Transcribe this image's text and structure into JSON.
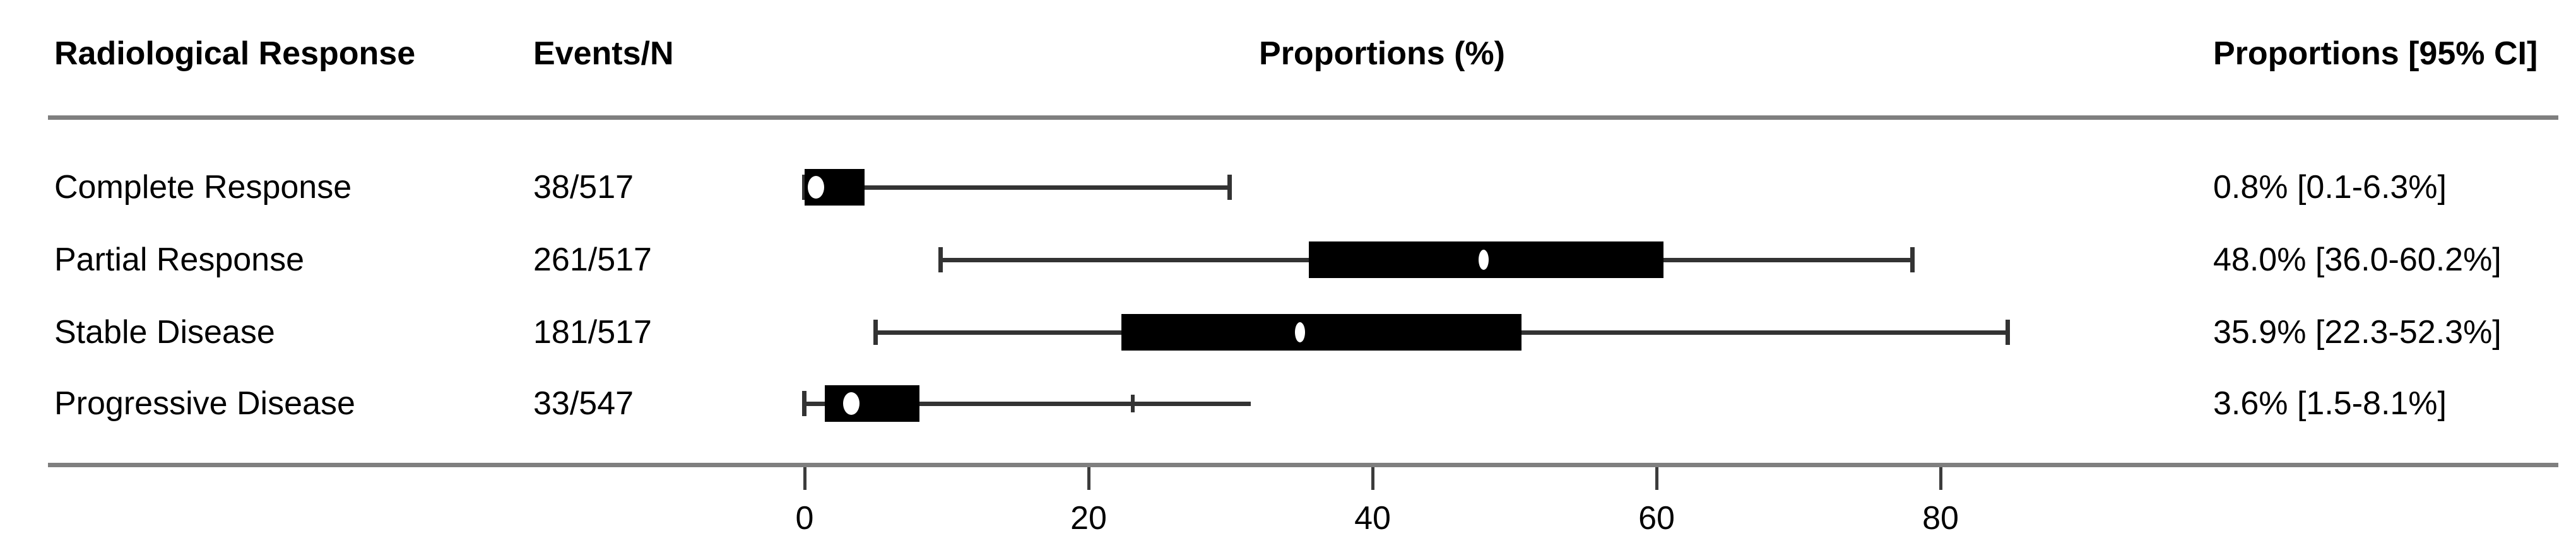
{
  "page": {
    "background": "#ffffff",
    "text_color": "#000000",
    "rule_color": "#7f7f7f",
    "box_color": "#000000",
    "marker_color": "#ffffff"
  },
  "header": {
    "col_response": "Radiological Response",
    "col_events": "Events/N",
    "col_proportions": "Proportions (%)",
    "col_ci": "Proportions [95% CI]"
  },
  "rows": [
    {
      "label": "Complete Response",
      "events_n": "38/517",
      "ci_text": "0.8% [0.1-6.3%]"
    },
    {
      "label": "Partial Response",
      "events_n": "261/517",
      "ci_text": "48.0% [36.0-60.2%]"
    },
    {
      "label": "Stable Disease",
      "events_n": "181/517",
      "ci_text": "35.9% [22.3-52.3%]"
    },
    {
      "label": "Progressive Disease",
      "events_n": "33/547",
      "ci_text": "3.6% [1.5-8.1%]"
    }
  ],
  "chart_data": {
    "type": "boxplot",
    "orientation": "horizontal",
    "title": "Proportions (%)",
    "xlabel": "Proportions (%)",
    "x_ticks": [
      0,
      20,
      40,
      60,
      80
    ],
    "x_axis_range_shown": [
      0,
      85
    ],
    "grid": false,
    "legend": false,
    "series": [
      {
        "category": "Complete Response",
        "estimate_pct": 0.8,
        "ci_pct": [
          0.1,
          6.3
        ],
        "box": [
          0.0,
          4.2
        ],
        "whiskers": [
          0.0,
          29.9
        ],
        "median_marker": 0.8,
        "caps": [
          "left",
          "right"
        ],
        "marker_style": "round"
      },
      {
        "category": "Partial Response",
        "estimate_pct": 48.0,
        "ci_pct": [
          36.0,
          60.2
        ],
        "box": [
          35.5,
          60.5
        ],
        "whiskers": [
          9.6,
          78.0
        ],
        "median_marker": 47.8,
        "caps": [
          "left",
          "right"
        ],
        "marker_style": "slim"
      },
      {
        "category": "Stable Disease",
        "estimate_pct": 35.9,
        "ci_pct": [
          22.3,
          52.3
        ],
        "box": [
          22.3,
          50.5
        ],
        "whiskers": [
          5.0,
          84.7
        ],
        "median_marker": 34.9,
        "caps": [
          "left",
          "right"
        ],
        "marker_style": "slim"
      },
      {
        "category": "Progressive Disease",
        "estimate_pct": 3.6,
        "ci_pct": [
          1.5,
          8.1
        ],
        "box": [
          1.4,
          8.1
        ],
        "whiskers": [
          0.0,
          31.4
        ],
        "median_marker": 3.3,
        "caps": [
          "left"
        ],
        "inner_tick": 23.1,
        "marker_style": "round"
      }
    ]
  }
}
